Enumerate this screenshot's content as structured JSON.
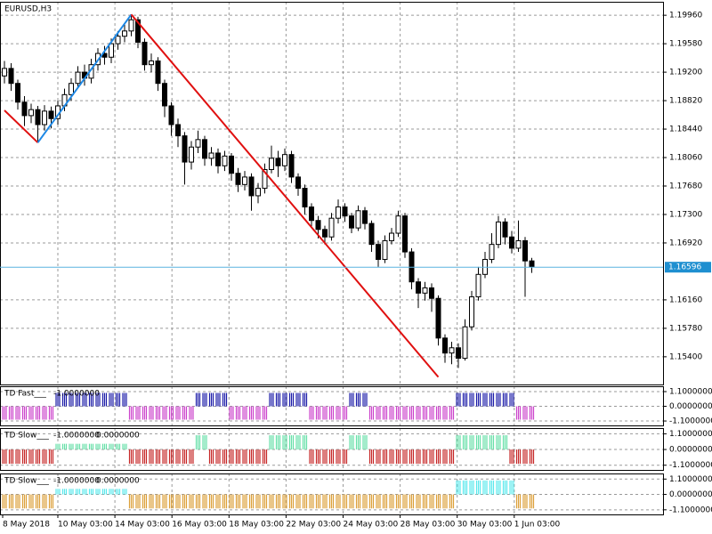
{
  "chart_data": [
    {
      "type": "candlestick",
      "title": "EURUSD,H3",
      "open": [
        1.1915,
        1.1925,
        1.1905,
        1.188,
        1.1862,
        1.187,
        1.185,
        1.1868,
        1.1858,
        1.1875,
        1.189,
        1.1905,
        1.192,
        1.1912,
        1.193,
        1.1945,
        1.194,
        1.1958,
        1.1968,
        1.1975,
        1.199,
        1.196,
        1.193,
        1.1935,
        1.1905,
        1.1875,
        1.185,
        1.1835,
        1.18,
        1.182,
        1.183,
        1.1805,
        1.1812,
        1.1795,
        1.1808,
        1.1785,
        1.177,
        1.178,
        1.1755,
        1.1765,
        1.179,
        1.1805,
        1.1795,
        1.181,
        1.178,
        1.1765,
        1.174,
        1.1722,
        1.171,
        1.17,
        1.1725,
        1.174,
        1.1728,
        1.1712,
        1.1735,
        1.1718,
        1.169,
        1.167,
        1.1695,
        1.1705,
        1.1728,
        1.168,
        1.164,
        1.1625,
        1.1632,
        1.1618,
        1.1565,
        1.1545,
        1.1552,
        1.1538,
        1.158,
        1.162,
        1.165,
        1.167,
        1.169,
        1.172,
        1.17,
        1.1685,
        1.1695,
        1.1668
      ],
      "high": [
        1.1935,
        1.1932,
        1.191,
        1.1888,
        1.1878,
        1.1875,
        1.1876,
        1.1874,
        1.1882,
        1.1898,
        1.1912,
        1.1928,
        1.193,
        1.1938,
        1.1952,
        1.1955,
        1.1965,
        1.1975,
        1.1985,
        1.1997,
        1.1994,
        1.1965,
        1.1945,
        1.194,
        1.191,
        1.188,
        1.1858,
        1.184,
        1.1828,
        1.1842,
        1.1835,
        1.182,
        1.1818,
        1.1815,
        1.1812,
        1.1792,
        1.1788,
        1.1785,
        1.1772,
        1.1798,
        1.1822,
        1.1815,
        1.1818,
        1.1815,
        1.1785,
        1.177,
        1.1745,
        1.1728,
        1.1715,
        1.1732,
        1.175,
        1.1745,
        1.1732,
        1.1742,
        1.174,
        1.1722,
        1.1695,
        1.1702,
        1.1712,
        1.1735,
        1.1732,
        1.1685,
        1.1645,
        1.164,
        1.1638,
        1.1622,
        1.157,
        1.156,
        1.1558,
        1.159,
        1.1628,
        1.166,
        1.168,
        1.1705,
        1.1728,
        1.1725,
        1.1708,
        1.1722,
        1.17,
        1.1672
      ],
      "low": [
        1.1905,
        1.1895,
        1.187,
        1.1848,
        1.1852,
        1.1826,
        1.1842,
        1.1845,
        1.185,
        1.1868,
        1.1882,
        1.1898,
        1.1902,
        1.1905,
        1.1922,
        1.193,
        1.1932,
        1.195,
        1.196,
        1.1968,
        1.1952,
        1.1922,
        1.192,
        1.1895,
        1.186,
        1.1835,
        1.182,
        1.177,
        1.179,
        1.1812,
        1.1795,
        1.1795,
        1.1785,
        1.1788,
        1.1775,
        1.176,
        1.1762,
        1.1735,
        1.1745,
        1.1758,
        1.1785,
        1.178,
        1.1788,
        1.1772,
        1.1755,
        1.173,
        1.1712,
        1.1698,
        1.169,
        1.1695,
        1.1718,
        1.172,
        1.1705,
        1.1708,
        1.171,
        1.168,
        1.166,
        1.1665,
        1.169,
        1.17,
        1.1672,
        1.163,
        1.1605,
        1.1615,
        1.16,
        1.1555,
        1.1532,
        1.153,
        1.1525,
        1.1535,
        1.1575,
        1.1615,
        1.1645,
        1.1665,
        1.1685,
        1.169,
        1.1678,
        1.168,
        1.162,
        1.1652
      ],
      "close": [
        1.1925,
        1.1905,
        1.188,
        1.1862,
        1.187,
        1.185,
        1.1868,
        1.1858,
        1.1875,
        1.189,
        1.1905,
        1.192,
        1.1912,
        1.193,
        1.1945,
        1.194,
        1.1958,
        1.1968,
        1.1975,
        1.199,
        1.196,
        1.193,
        1.1935,
        1.1905,
        1.1875,
        1.185,
        1.1835,
        1.18,
        1.182,
        1.183,
        1.1805,
        1.1812,
        1.1795,
        1.1808,
        1.1785,
        1.177,
        1.178,
        1.1755,
        1.1765,
        1.179,
        1.1805,
        1.1795,
        1.181,
        1.178,
        1.1765,
        1.174,
        1.1722,
        1.171,
        1.17,
        1.1725,
        1.174,
        1.1728,
        1.1712,
        1.1735,
        1.1718,
        1.169,
        1.167,
        1.1695,
        1.1705,
        1.1728,
        1.168,
        1.164,
        1.1625,
        1.1632,
        1.1618,
        1.1565,
        1.1545,
        1.1552,
        1.1538,
        1.158,
        1.162,
        1.165,
        1.167,
        1.169,
        1.172,
        1.17,
        1.1685,
        1.1695,
        1.1668,
        1.166
      ],
      "ylim": [
        1.1503,
        1.2014
      ],
      "yticks": [
        {
          "value": 1.1996,
          "label": "1.19960"
        },
        {
          "value": 1.1958,
          "label": "1.19580"
        },
        {
          "value": 1.192,
          "label": "1.19200"
        },
        {
          "value": 1.1882,
          "label": "1.18820"
        },
        {
          "value": 1.1844,
          "label": "1.18440"
        },
        {
          "value": 1.1806,
          "label": "1.18060"
        },
        {
          "value": 1.1768,
          "label": "1.17680"
        },
        {
          "value": 1.173,
          "label": "1.17300"
        },
        {
          "value": 1.1692,
          "label": "1.16920"
        },
        {
          "value": 1.1616,
          "label": "1.16160"
        },
        {
          "value": 1.1578,
          "label": "1.15780"
        },
        {
          "value": 1.154,
          "label": "1.15400"
        }
      ],
      "current_price": 1.16596,
      "trendlines": [
        {
          "color": "#e01010",
          "points": [
            [
              0,
              1.1869
            ],
            [
              5,
              1.1826
            ]
          ]
        },
        {
          "color": "#1e88e5",
          "points": [
            [
              5,
              1.1826
            ],
            [
              19,
              1.1997
            ]
          ]
        },
        {
          "color": "#e01010",
          "points": [
            [
              19,
              1.1997
            ],
            [
              65,
              1.1513
            ]
          ]
        }
      ],
      "time_labels": [
        "8 May 2018",
        "10 May 03:00",
        "14 May 03:00",
        "16 May 03:00",
        "18 May 03:00",
        "22 May 03:00",
        "24 May 03:00",
        "28 May 03:00",
        "30 May 03:00",
        "1 Jun 03:00"
      ]
    },
    {
      "type": "bar",
      "title": "TD Fast___",
      "readout": [
        "-1.0000000"
      ],
      "colors": {
        "up": "#1c1ca8",
        "down": "#cc44cc"
      },
      "values": [
        -1,
        -1,
        -1,
        -1,
        -1,
        -1,
        -1,
        -1,
        1,
        1,
        1,
        1,
        1,
        1,
        1,
        1,
        1,
        1,
        1,
        -1,
        -1,
        -1,
        -1,
        -1,
        -1,
        -1,
        -1,
        -1,
        -1,
        1,
        1,
        1,
        1,
        1,
        -1,
        -1,
        -1,
        -1,
        -1,
        -1,
        1,
        1,
        1,
        1,
        1,
        1,
        -1,
        -1,
        -1,
        -1,
        -1,
        -1,
        1,
        1,
        1,
        -1,
        -1,
        -1,
        -1,
        -1,
        -1,
        -1,
        -1,
        -1,
        -1,
        -1,
        -1,
        -1,
        1,
        1,
        1,
        1,
        1,
        1,
        1,
        1,
        1,
        -1,
        -1,
        -1
      ],
      "ylim": [
        -1.43,
        1.5
      ],
      "yticks": [
        {
          "value": 1.1,
          "label": "1.1000000"
        },
        {
          "value": 0,
          "label": "0.0000000"
        },
        {
          "value": -1.1,
          "label": "-1.1000000"
        }
      ]
    },
    {
      "type": "bar",
      "title": "TD Slow___",
      "readout": [
        "-1.0000000",
        "0.0000000"
      ],
      "colors": {
        "up": "#66e0a8",
        "down": "#c62828"
      },
      "values": [
        -1,
        -1,
        -1,
        -1,
        -1,
        -1,
        -1,
        -1,
        0.4,
        0.4,
        0.4,
        0.4,
        0.4,
        0.4,
        0.4,
        0.4,
        0.4,
        0.4,
        0.4,
        -1,
        -1,
        -1,
        -1,
        -1,
        -1,
        -1,
        -1,
        -1,
        -1,
        1,
        1,
        -1,
        -1,
        -1,
        -1,
        -1,
        -1,
        -1,
        -1,
        -1,
        1,
        1,
        1,
        1,
        1,
        1,
        -1,
        -1,
        -1,
        -1,
        -1,
        -1,
        1,
        1,
        1,
        -1,
        -1,
        -1,
        -1,
        -1,
        -1,
        -1,
        -1,
        -1,
        -1,
        -1,
        -1,
        -1,
        1,
        1,
        1,
        1,
        1,
        1,
        1,
        1,
        -1,
        -1,
        -1,
        -1
      ],
      "ylim": [
        -1.43,
        1.5
      ],
      "yticks": [
        {
          "value": 1.1,
          "label": "1.1000000"
        },
        {
          "value": 0,
          "label": "0.0000000"
        },
        {
          "value": -1.1,
          "label": "-1.1000000"
        }
      ]
    },
    {
      "type": "bar",
      "title": "TD Slow___",
      "readout": [
        "-1.0000000",
        "0.0000000"
      ],
      "colors": {
        "up": "#5ae8ec",
        "down": "#dca03a"
      },
      "values": [
        -1,
        -1,
        -1,
        -1,
        -1,
        -1,
        -1,
        -1,
        0.4,
        0.4,
        0.4,
        0.4,
        0.4,
        0.4,
        0.4,
        0.4,
        0.4,
        0.4,
        0.4,
        -1,
        -1,
        -1,
        -1,
        -1,
        -1,
        -1,
        -1,
        -1,
        -1,
        -1,
        -1,
        -1,
        -1,
        -1,
        -1,
        -1,
        -1,
        -1,
        -1,
        -1,
        -1,
        -1,
        -1,
        -1,
        -1,
        -1,
        -1,
        -1,
        -1,
        -1,
        -1,
        -1,
        -1,
        -1,
        -1,
        -1,
        -1,
        -1,
        -1,
        -1,
        -1,
        -1,
        -1,
        -1,
        -1,
        -1,
        -1,
        -1,
        1,
        1,
        1,
        1,
        1,
        1,
        1,
        1,
        1,
        -1,
        -1,
        -1
      ],
      "ylim": [
        -1.43,
        1.5
      ],
      "yticks": [
        {
          "value": 1.1,
          "label": "1.1000000"
        },
        {
          "value": 0,
          "label": "0.0000000"
        },
        {
          "value": -1.1,
          "label": "-1.1000000"
        }
      ]
    }
  ]
}
